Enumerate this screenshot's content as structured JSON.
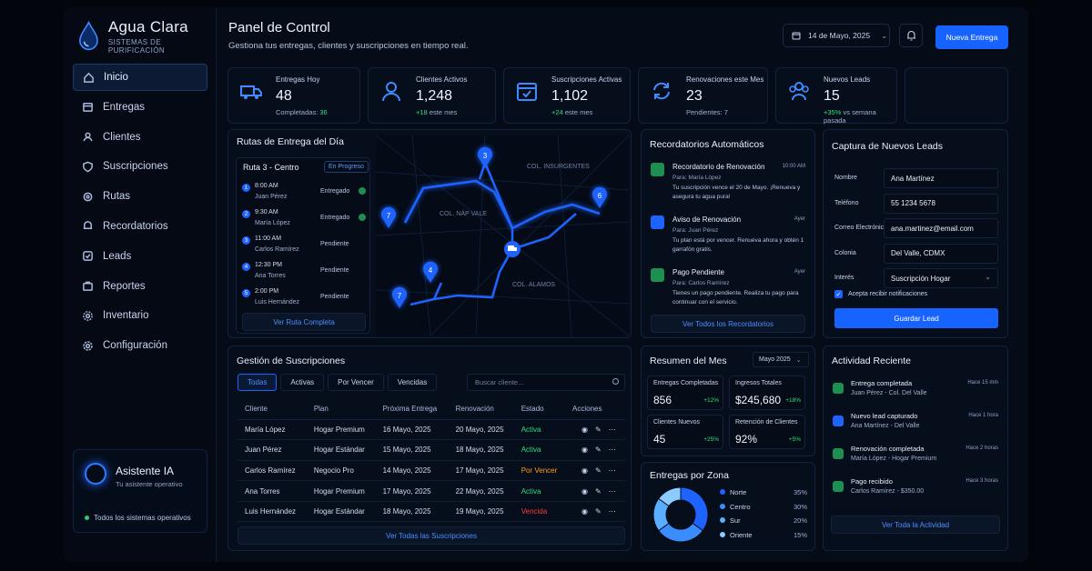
{
  "brand": {
    "name": "Agua Clara",
    "tagline": "SISTEMAS DE PURIFICACIÓN"
  },
  "nav": [
    "Inicio",
    "Entregas",
    "Clientes",
    "Suscripciones",
    "Rutas",
    "Recordatorios",
    "Leads",
    "Reportes",
    "Inventario",
    "Configuración"
  ],
  "nav_icons": [
    "home-icon",
    "calendar-icon",
    "user-icon",
    "shield-icon",
    "route-icon",
    "bell-icon",
    "leads-icon",
    "briefcase-icon",
    "gear-icon",
    "settings-icon"
  ],
  "assistant": {
    "name": "Asistente IA",
    "subtitle": "Tu asistente operativo",
    "status": "Todos los sistemas operativos"
  },
  "header": {
    "title": "Panel de Control",
    "subtitle": "Gestiona tus entregas, clientes y suscripciones en tiempo real.",
    "date": "14 de Mayo, 2025",
    "new_button": "Nueva Entrega"
  },
  "stats": [
    {
      "label": "Entregas Hoy",
      "value": "48",
      "sub_label": "Completadas:",
      "sub_value": "36",
      "icon": "truck-icon"
    },
    {
      "label": "Clientes Activos",
      "value": "1,248",
      "sub_label": "este mes",
      "sub_value": "+18",
      "icon": "user-icon"
    },
    {
      "label": "Suscripciones Activas",
      "value": "1,102",
      "sub_label": "este mes",
      "sub_value": "+24",
      "icon": "calendar-icon"
    },
    {
      "label": "Renovaciones este Mes",
      "value": "23",
      "sub_label": "Pendientes: 7",
      "sub_value": "",
      "icon": "refresh-icon"
    },
    {
      "label": "Nuevos Leads",
      "value": "15",
      "sub_label": "vs semana pasada",
      "sub_value": "+35%",
      "icon": "users-icon"
    }
  ],
  "routes": {
    "title": "Rutas de Entrega del Día",
    "route_name": "Ruta 3 - Centro",
    "badge": "En Progreso",
    "stops": [
      {
        "n": "1",
        "time": "8:00 AM",
        "name": "Juan Pérez",
        "status": "Entregado"
      },
      {
        "n": "2",
        "time": "9:30 AM",
        "name": "María López",
        "status": "Entregado"
      },
      {
        "n": "3",
        "time": "11:00 AM",
        "name": "Carlos Ramírez",
        "status": "Pendiente"
      },
      {
        "n": "4",
        "time": "12:30 PM",
        "name": "Ana Torres",
        "status": "Pendiente"
      },
      {
        "n": "5",
        "time": "2:00 PM",
        "name": "Luis Hernández",
        "status": "Pendiente"
      }
    ],
    "link": "Ver Ruta Completa",
    "map_labels": [
      "COL. INSURGENTES",
      "COL. NÁP VALE",
      "COL. ALAMOS"
    ],
    "pins": [
      "3",
      "6",
      "7",
      "4",
      "7"
    ]
  },
  "reminders": {
    "title": "Recordatorios Automáticos",
    "items": [
      {
        "title": "Recordatorio de Renovación",
        "time": "10:00 AM",
        "to": "Para: María López",
        "msg": "Tu suscripción vence el 20 de Mayo. ¡Renueva y asegura tu agua pura!",
        "color": "#1d8f50"
      },
      {
        "title": "Aviso de Renovación",
        "time": "Ayer",
        "to": "Para: Juan Pérez",
        "msg": "Tu plan está por vencer. Renueva ahora y obtén 1 garrafón gratis.",
        "color": "#1f63ff"
      },
      {
        "title": "Pago Pendiente",
        "time": "Ayer",
        "to": "Para: Carlos Ramírez",
        "msg": "Tienes un pago pendiente. Realiza tu pago para continuar con el servicio.",
        "color": "#1d8f50"
      }
    ],
    "link": "Ver Todos los Recordatorios"
  },
  "leads": {
    "title": "Captura de Nuevos Leads",
    "fields": [
      {
        "label": "Nombre",
        "value": "Ana Martínez"
      },
      {
        "label": "Teléfono",
        "value": "55 1234 5678"
      },
      {
        "label": "Correo Electrónico",
        "value": "ana.martinez@email.com"
      },
      {
        "label": "Colonia",
        "value": "Del Valle, CDMX"
      },
      {
        "label": "Interés",
        "value": "Suscripción Hogar"
      }
    ],
    "checkbox": "Acepta recibir notificaciones",
    "button": "Guardar Lead"
  },
  "subscriptions": {
    "title": "Gestión de Suscripciones",
    "tabs": [
      "Todas",
      "Activas",
      "Por Vencer",
      "Vencidas"
    ],
    "search_placeholder": "Buscar cliente...",
    "columns": [
      "Cliente",
      "Plan",
      "Próxima Entrega",
      "Renovación",
      "Estado",
      "Acciones"
    ],
    "rows": [
      {
        "client": "María López",
        "plan": "Hogar Premium",
        "next": "16 Mayo, 2025",
        "renew": "20 Mayo, 2025",
        "status": "Activa"
      },
      {
        "client": "Juan Pérez",
        "plan": "Hogar Estándar",
        "next": "15 Mayo, 2025",
        "renew": "18 Mayo, 2025",
        "status": "Activa"
      },
      {
        "client": "Carlos Ramírez",
        "plan": "Negocio Pro",
        "next": "14 Mayo, 2025",
        "renew": "17 Mayo, 2025",
        "status": "Por Vencer"
      },
      {
        "client": "Ana Torres",
        "plan": "Hogar Premium",
        "next": "17 Mayo, 2025",
        "renew": "22 Mayo, 2025",
        "status": "Activa"
      },
      {
        "client": "Luis Hernández",
        "plan": "Hogar Estándar",
        "next": "18 Mayo, 2025",
        "renew": "19 Mayo, 2025",
        "status": "Vencida"
      }
    ],
    "status_colors": {
      "Activa": "#2ee07a",
      "Por Vencer": "#ff9f1a",
      "Vencida": "#ff3b3b"
    },
    "link": "Ver Todas las Suscripciones"
  },
  "summary": {
    "title": "Resumen del Mes",
    "period": "Mayo 2025",
    "metrics": [
      {
        "label": "Entregas Completadas",
        "value": "856",
        "pct": "+12%"
      },
      {
        "label": "Ingresos Totales",
        "value": "$245,680",
        "pct": "+18%"
      },
      {
        "label": "Clientes Nuevos",
        "value": "45",
        "pct": "+25%"
      },
      {
        "label": "Retención de Clientes",
        "value": "92%",
        "pct": "+5%"
      }
    ]
  },
  "zones": {
    "title": "Entregas por Zona",
    "items": [
      {
        "name": "Norte",
        "pct": "35%",
        "value": 35,
        "color": "#1f63ff"
      },
      {
        "name": "Centro",
        "pct": "30%",
        "value": 30,
        "color": "#3b8cff"
      },
      {
        "name": "Sur",
        "pct": "20%",
        "value": 20,
        "color": "#5aaeff"
      },
      {
        "name": "Oriente",
        "pct": "15%",
        "value": 15,
        "color": "#8ccbff"
      }
    ]
  },
  "activity": {
    "title": "Actividad Reciente",
    "items": [
      {
        "title": "Entrega completada",
        "sub": "Juan Pérez - Col. Del Valle",
        "time": "Hace 15 min"
      },
      {
        "title": "Nuevo lead capturado",
        "sub": "Ana Martínez - Del Valle",
        "time": "Hace 1 hora"
      },
      {
        "title": "Renovación completada",
        "sub": "María López - Hogar Premium",
        "time": "Hace 2 horas"
      },
      {
        "title": "Pago recibido",
        "sub": "Carlos Ramírez - $350.00",
        "time": "Hace 3 horas"
      }
    ],
    "link": "Ver Toda la Actividad"
  }
}
